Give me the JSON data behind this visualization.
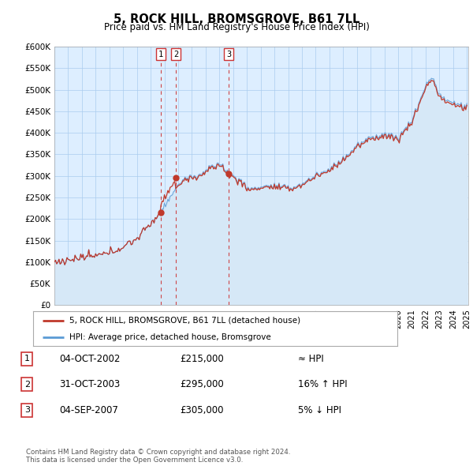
{
  "title": "5, ROCK HILL, BROMSGROVE, B61 7LL",
  "subtitle": "Price paid vs. HM Land Registry's House Price Index (HPI)",
  "ylim": [
    0,
    600000
  ],
  "yticks": [
    0,
    50000,
    100000,
    150000,
    200000,
    250000,
    300000,
    350000,
    400000,
    450000,
    500000,
    550000,
    600000
  ],
  "ytick_labels": [
    "£0",
    "£50K",
    "£100K",
    "£150K",
    "£200K",
    "£250K",
    "£300K",
    "£350K",
    "£400K",
    "£450K",
    "£500K",
    "£550K",
    "£600K"
  ],
  "hpi_color": "#5b9bd5",
  "hpi_fill_color": "#d6e8f7",
  "sale_color": "#c0392b",
  "sale_dates_num": [
    2002.75,
    2003.83,
    2007.67
  ],
  "sale_prices": [
    215000,
    295000,
    305000
  ],
  "sale_labels": [
    "1",
    "2",
    "3"
  ],
  "legend_sale": "5, ROCK HILL, BROMSGROVE, B61 7LL (detached house)",
  "legend_hpi": "HPI: Average price, detached house, Bromsgrove",
  "table_entries": [
    {
      "label": "1",
      "date": "04-OCT-2002",
      "price": "£215,000",
      "hpi_note": "≈ HPI"
    },
    {
      "label": "2",
      "date": "31-OCT-2003",
      "price": "£295,000",
      "hpi_note": "16% ↑ HPI"
    },
    {
      "label": "3",
      "date": "04-SEP-2007",
      "price": "£305,000",
      "hpi_note": "5% ↓ HPI"
    }
  ],
  "footer": "Contains HM Land Registry data © Crown copyright and database right 2024.\nThis data is licensed under the Open Government Licence v3.0.",
  "background_color": "#ffffff",
  "chart_bg_color": "#ddeeff",
  "grid_color": "#aaccee",
  "dashed_line_color": "#cc3333",
  "label_box_color": "#cc3333"
}
